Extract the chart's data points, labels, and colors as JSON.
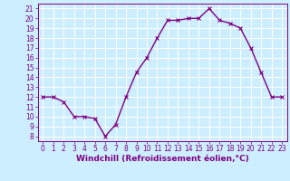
{
  "x": [
    0,
    1,
    2,
    3,
    4,
    5,
    6,
    7,
    8,
    9,
    10,
    11,
    12,
    13,
    14,
    15,
    16,
    17,
    18,
    19,
    20,
    21,
    22,
    23
  ],
  "y": [
    12,
    12,
    11.5,
    10,
    10,
    9.8,
    8,
    9.2,
    12,
    14.5,
    16,
    18,
    19.8,
    19.8,
    20,
    20,
    21,
    19.8,
    19.5,
    19,
    17,
    14.5,
    12,
    12
  ],
  "line_color": "#800080",
  "marker": "x",
  "marker_size": 3,
  "linewidth": 1.0,
  "bg_color": "#cceeff",
  "grid_color": "#aaddcc",
  "xlabel": "Windchill (Refroidissement éolien,°C)",
  "xlabel_fontsize": 6.5,
  "tick_fontsize": 5.5,
  "ylim": [
    7.5,
    21.5
  ],
  "xlim": [
    -0.5,
    23.5
  ],
  "yticks": [
    8,
    9,
    10,
    11,
    12,
    13,
    14,
    15,
    16,
    17,
    18,
    19,
    20,
    21
  ],
  "xticks": [
    0,
    1,
    2,
    3,
    4,
    5,
    6,
    7,
    8,
    9,
    10,
    11,
    12,
    13,
    14,
    15,
    16,
    17,
    18,
    19,
    20,
    21,
    22,
    23
  ]
}
